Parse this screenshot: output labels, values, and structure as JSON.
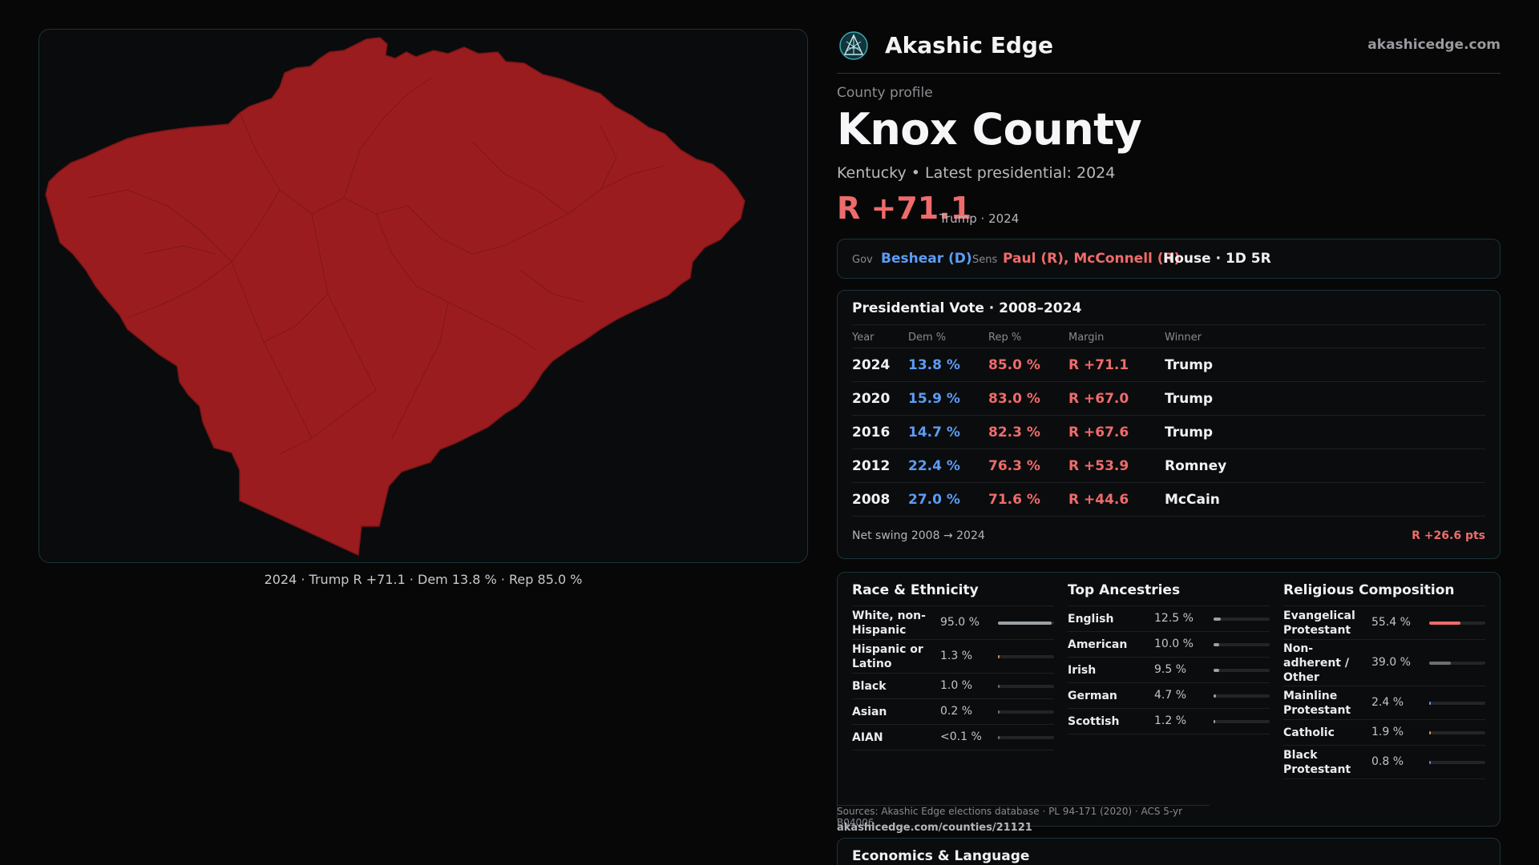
{
  "brand": {
    "name": "Akashic Edge",
    "domain": "akashicedge.com"
  },
  "map": {
    "fill_color": "#9b1c1f",
    "border_color": "#7a1518",
    "caption": "2024 · Trump R +71.1 · Dem 13.8 % · Rep 85.0 %"
  },
  "profile": {
    "eyebrow": "County profile",
    "title": "Knox County",
    "subtitle": "Kentucky • Latest presidential: 2024",
    "margin": "R +71.1",
    "margin_note": "Trump · 2024"
  },
  "officials": {
    "gov_label": "Gov",
    "gov": "Beshear (D)",
    "sens_label": "Sens",
    "sens": "Paul (R), McConnell (R)",
    "house": "House · 1D 5R"
  },
  "presidential": {
    "title": "Presidential Vote · 2008–2024",
    "headers": {
      "year": "Year",
      "dem": "Dem %",
      "rep": "Rep %",
      "margin": "Margin",
      "winner": "Winner"
    },
    "rows": [
      {
        "year": "2024",
        "dem": "13.8 %",
        "rep": "85.0 %",
        "margin": "R +71.1",
        "winner": "Trump"
      },
      {
        "year": "2020",
        "dem": "15.9 %",
        "rep": "83.0 %",
        "margin": "R +67.0",
        "winner": "Trump"
      },
      {
        "year": "2016",
        "dem": "14.7 %",
        "rep": "82.3 %",
        "margin": "R +67.6",
        "winner": "Trump"
      },
      {
        "year": "2012",
        "dem": "22.4 %",
        "rep": "76.3 %",
        "margin": "R +53.9",
        "winner": "Romney"
      },
      {
        "year": "2008",
        "dem": "27.0 %",
        "rep": "71.6 %",
        "margin": "R +44.6",
        "winner": "McCain"
      }
    ],
    "swing_label": "Net swing 2008 → 2024",
    "swing_value": "R +26.6 pts"
  },
  "demographics": {
    "race": {
      "title": "Race & Ethnicity",
      "items": [
        {
          "label": "White, non-Hispanic",
          "value": "95.0 %",
          "pct": 95.0,
          "color": "#9aa0a8"
        },
        {
          "label": "Hispanic or Latino",
          "value": "1.3 %",
          "pct": 1.3,
          "color": "#d08a3a"
        },
        {
          "label": "Black",
          "value": "1.0 %",
          "pct": 1.0,
          "color": "#6b6f75"
        },
        {
          "label": "Asian",
          "value": "0.2 %",
          "pct": 0.2,
          "color": "#6b6f75"
        },
        {
          "label": "AIAN",
          "value": "<0.1 %",
          "pct": 0.05,
          "color": "#6b6f75"
        }
      ]
    },
    "ancestry": {
      "title": "Top Ancestries",
      "items": [
        {
          "label": "English",
          "value": "12.5 %",
          "pct": 12.5,
          "color": "#9aa0a8"
        },
        {
          "label": "American",
          "value": "10.0 %",
          "pct": 10.0,
          "color": "#9aa0a8"
        },
        {
          "label": "Irish",
          "value": "9.5 %",
          "pct": 9.5,
          "color": "#9aa0a8"
        },
        {
          "label": "German",
          "value": "4.7 %",
          "pct": 4.7,
          "color": "#9aa0a8"
        },
        {
          "label": "Scottish",
          "value": "1.2 %",
          "pct": 1.2,
          "color": "#9aa0a8"
        }
      ]
    },
    "religion": {
      "title": "Religious Composition",
      "items": [
        {
          "label": "Evangelical Protestant",
          "value": "55.4 %",
          "pct": 55.4,
          "color": "#ef6b6b"
        },
        {
          "label": "Non-adherent / Other",
          "value": "39.0 %",
          "pct": 39.0,
          "color": "#6b6f75"
        },
        {
          "label": "Mainline Protestant",
          "value": "2.4 %",
          "pct": 2.4,
          "color": "#5c9cf5"
        },
        {
          "label": "Catholic",
          "value": "1.9 %",
          "pct": 1.9,
          "color": "#d0a03a"
        },
        {
          "label": "Black Protestant",
          "value": "0.8 %",
          "pct": 0.8,
          "color": "#8a6fd0"
        }
      ]
    }
  },
  "sources": {
    "text": "Sources: Akashic Edge elections database · PL 94-171 (2020) · ACS 5-yr B04006",
    "link": "akashicedge.com/counties/21121"
  },
  "economics": {
    "title": "Economics & Language"
  }
}
